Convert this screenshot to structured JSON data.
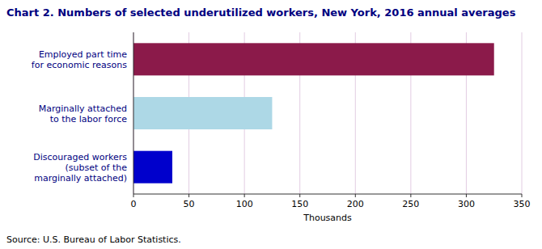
{
  "chart_data": {
    "type": "bar",
    "orientation": "horizontal",
    "title": "Chart 2. Numbers of selected underutilized workers, New York, 2016 annual averages",
    "categories": [
      "Discouraged workers\n(subset of the\nmarginally attached)",
      "Marginally attached\nto the labor force",
      "Employed part time\nfor economic reasons"
    ],
    "values": [
      35,
      125,
      325
    ],
    "colors": [
      "#0000CC",
      "#ADD8E6",
      "#8B1A4A"
    ],
    "xlim": [
      0,
      350
    ],
    "xticks": [
      0,
      50,
      100,
      150,
      200,
      250,
      300,
      350
    ],
    "xlabel": "Thousands",
    "grid": true,
    "annotations": [
      "Source: U.S. Bureau of Labor Statistics."
    ]
  }
}
